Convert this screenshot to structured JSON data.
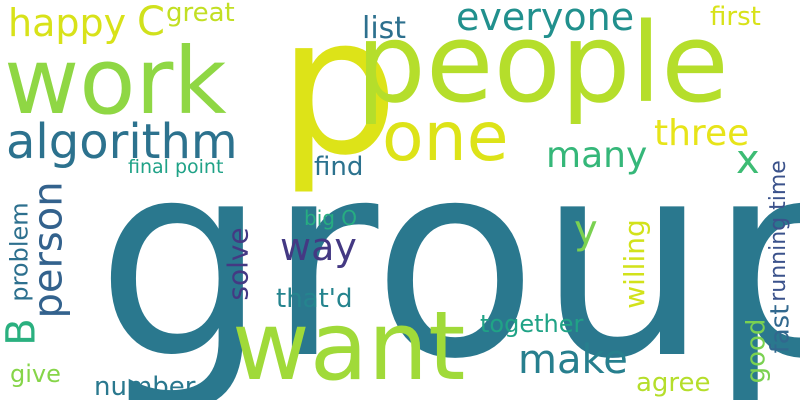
{
  "words": [
    {
      "id": "group",
      "text": "group",
      "color": "#2a788e"
    },
    {
      "id": "p",
      "text": "p",
      "color": "#dde318"
    },
    {
      "id": "people",
      "text": "people",
      "color": "#b5de2b"
    },
    {
      "id": "work",
      "text": "work",
      "color": "#8fd744"
    },
    {
      "id": "want",
      "text": "want",
      "color": "#a0da39"
    },
    {
      "id": "one",
      "text": "one",
      "color": "#dde318"
    },
    {
      "id": "algorithm",
      "text": "algorithm",
      "color": "#2c728e"
    },
    {
      "id": "everyone",
      "text": "everyone",
      "color": "#21908d"
    },
    {
      "id": "happy",
      "text": "happy",
      "color": "#d8e219"
    },
    {
      "id": "c",
      "text": "C",
      "color": "#d0e11c"
    },
    {
      "id": "great",
      "text": "great",
      "color": "#c2df23"
    },
    {
      "id": "first",
      "text": "first",
      "color": "#d8e219"
    },
    {
      "id": "list",
      "text": "list",
      "color": "#2d708e"
    },
    {
      "id": "three",
      "text": "three",
      "color": "#e7e419"
    },
    {
      "id": "many",
      "text": "many",
      "color": "#35b779"
    },
    {
      "id": "x",
      "text": "x",
      "color": "#3dbc74"
    },
    {
      "id": "final-point",
      "text": "final point",
      "color": "#1fa287"
    },
    {
      "id": "find",
      "text": "find",
      "color": "#2c728e"
    },
    {
      "id": "person",
      "text": "person",
      "color": "#33628d"
    },
    {
      "id": "problem",
      "text": "problem",
      "color": "#2d708e"
    },
    {
      "id": "b",
      "text": "B",
      "color": "#2ab07f"
    },
    {
      "id": "way",
      "text": "way",
      "color": "#443983"
    },
    {
      "id": "y",
      "text": "y",
      "color": "#7ad151"
    },
    {
      "id": "big-o",
      "text": "big O",
      "color": "#27ad81"
    },
    {
      "id": "solve",
      "text": "solve",
      "color": "#443983"
    },
    {
      "id": "thatd",
      "text": "that'd",
      "color": "#25848e"
    },
    {
      "id": "willing",
      "text": "willing",
      "color": "#d2e21b"
    },
    {
      "id": "running-time",
      "text": "running time",
      "color": "#3b528b"
    },
    {
      "id": "fast",
      "text": "fast",
      "color": "#31688e"
    },
    {
      "id": "together",
      "text": "together",
      "color": "#20a386"
    },
    {
      "id": "make",
      "text": "make",
      "color": "#277f8e"
    },
    {
      "id": "good",
      "text": "good",
      "color": "#7ad151"
    },
    {
      "id": "give",
      "text": "give",
      "color": "#86d549"
    },
    {
      "id": "number",
      "text": "number",
      "color": "#2a788e"
    },
    {
      "id": "agree",
      "text": "agree",
      "color": "#b5de2b"
    }
  ]
}
